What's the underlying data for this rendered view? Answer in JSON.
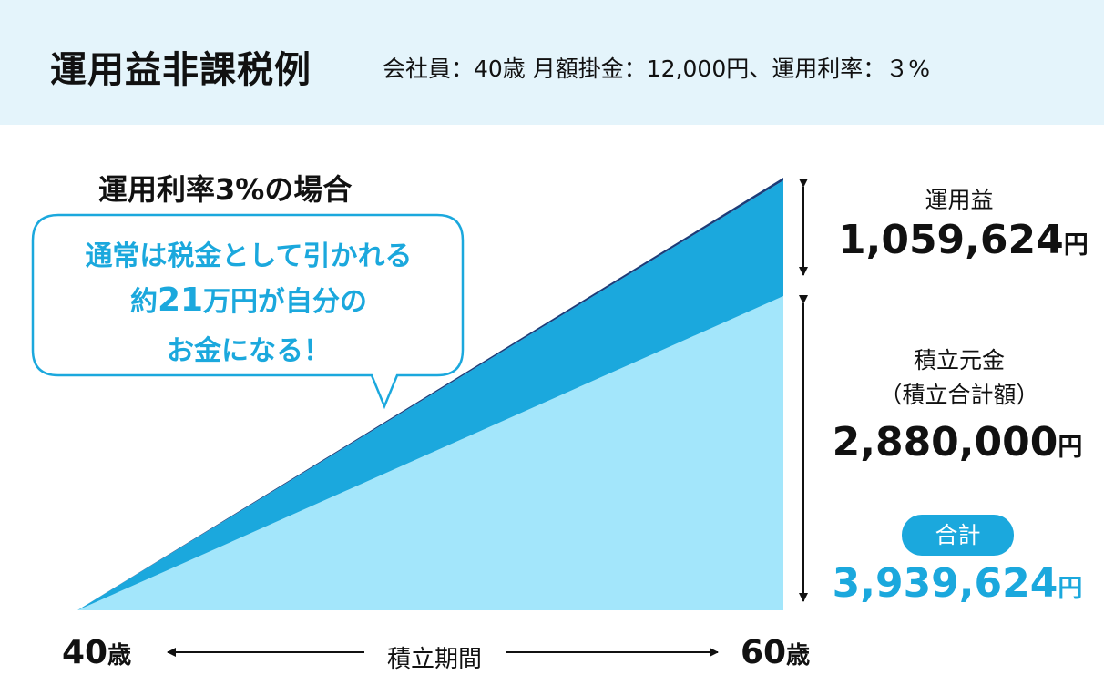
{
  "header": {
    "title": "運用益非課税例",
    "subtitle": "会社員：40歳 月額掛金：12,000円、運用利率：３%"
  },
  "chart_data": {
    "type": "area",
    "title": "運用利率3%の場合",
    "x": [
      "40歳",
      "60歳"
    ],
    "xlabel": "積立期間",
    "series": [
      {
        "name": "積立元金（積立合計額）",
        "values": [
          0,
          2880000
        ],
        "color": "#a3e6fb"
      },
      {
        "name": "運用益",
        "values": [
          0,
          1059624
        ],
        "color": "#1ba8dd"
      },
      {
        "name": "",
        "values": [
          0,
          0
        ],
        "color": "#1c3c78"
      }
    ],
    "stacked": true
  },
  "callout": {
    "line1": "通常は税金として引かれる",
    "line2_prefix": "約",
    "line2_amount": "21",
    "line2_suffix": "万円が自分の",
    "line3": "お金になる！"
  },
  "labels": {
    "gain_title": "運用益",
    "gain_value": "1,059,624",
    "principal_title": "積立元金",
    "principal_subtitle": "（積立合計額）",
    "principal_value": "2,880,000",
    "total_badge": "合計",
    "total_value": "3,939,624",
    "yen_unit": "円",
    "start_age": "40",
    "end_age": "60",
    "age_unit": "歳",
    "period": "積立期間"
  },
  "colors": {
    "principal": "#a3e6fb",
    "gain": "#1ba8dd",
    "tax_band": "#1c3c78",
    "accent": "#1ba8dd",
    "header_bg": "#e4f4fb"
  }
}
